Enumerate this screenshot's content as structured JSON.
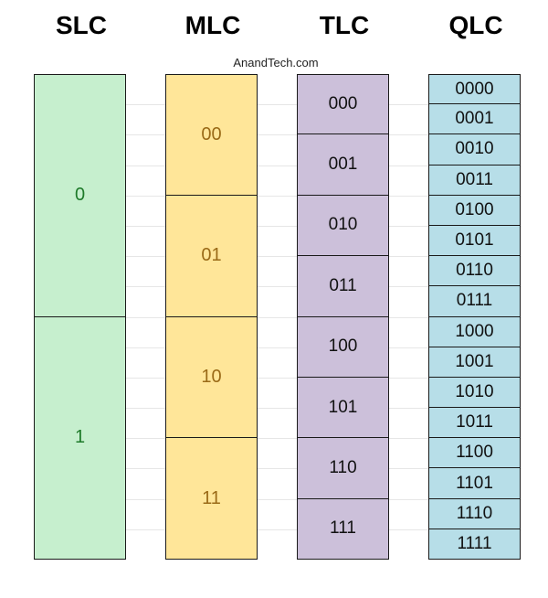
{
  "watermark": "AnandTech.com",
  "columns": [
    {
      "id": "slc",
      "header": "SLC",
      "fill": "#c6efce",
      "text_color": "#1e7a2a",
      "font_size": 20,
      "cells": [
        "0",
        "1"
      ]
    },
    {
      "id": "mlc",
      "header": "MLC",
      "fill": "#ffe699",
      "text_color": "#9a6a17",
      "font_size": 20,
      "cells": [
        "00",
        "01",
        "10",
        "11"
      ]
    },
    {
      "id": "tlc",
      "header": "TLC",
      "fill": "#ccc0da",
      "text_color": "#111111",
      "font_size": 19,
      "cells": [
        "000",
        "001",
        "010",
        "011",
        "100",
        "101",
        "110",
        "111"
      ]
    },
    {
      "id": "qlc",
      "header": "QLC",
      "fill": "#b7dee8",
      "text_color": "#111111",
      "font_size": 19,
      "cells": [
        "0000",
        "0001",
        "0010",
        "0011",
        "0100",
        "0101",
        "0110",
        "0111",
        "1000",
        "1001",
        "1010",
        "1011",
        "1100",
        "1101",
        "1110",
        "1111"
      ]
    }
  ]
}
